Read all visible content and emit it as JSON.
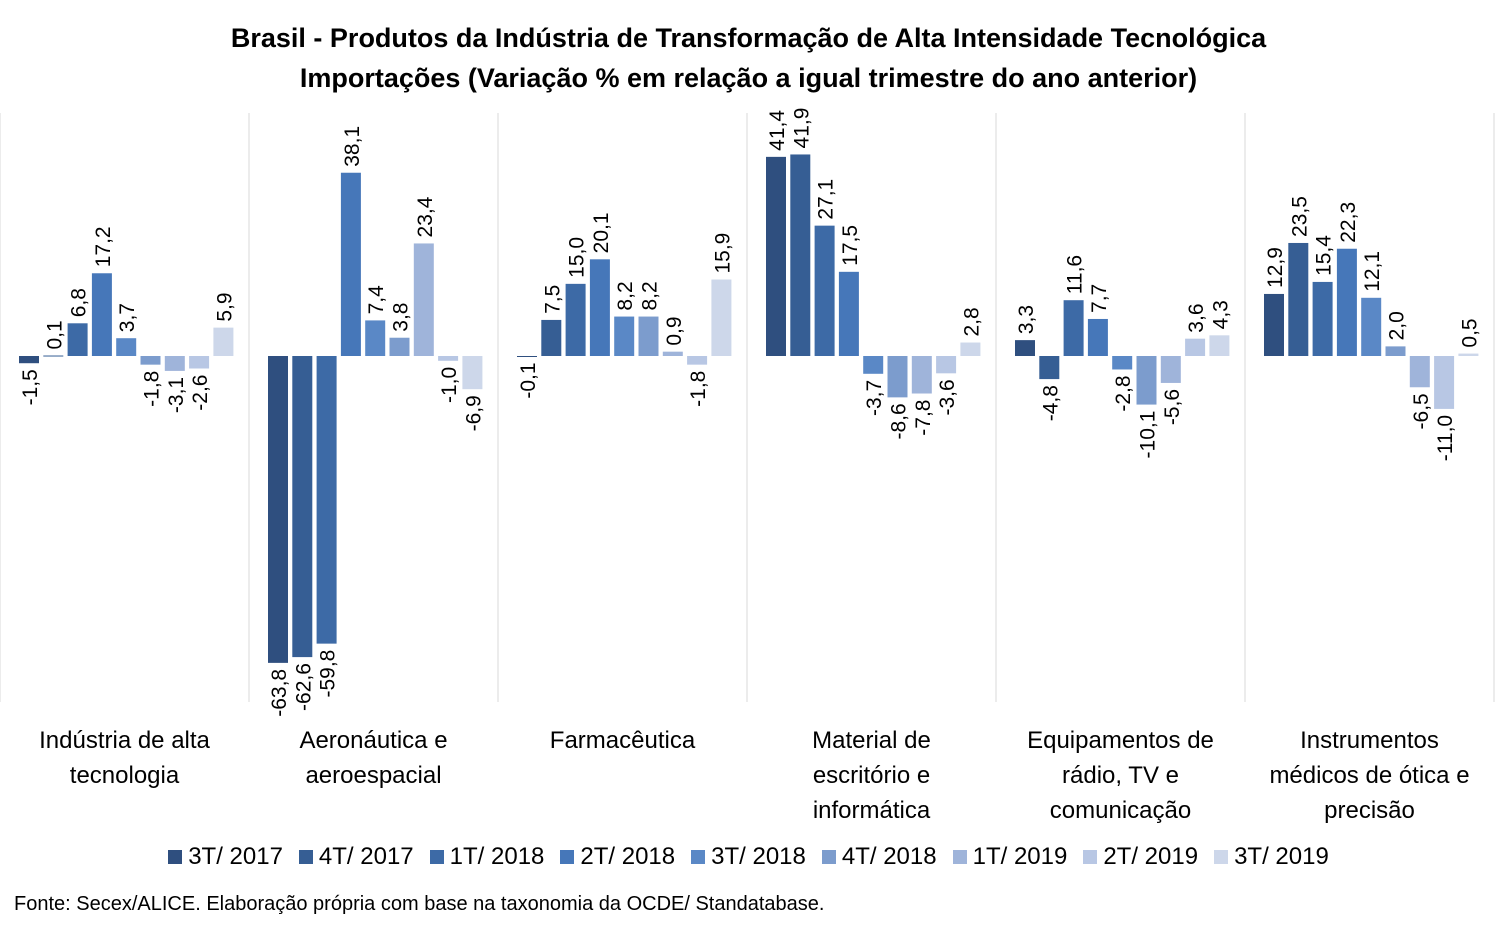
{
  "chart_data": {
    "type": "bar",
    "title": "Brasil - Produtos da Indústria de Transformação de Alta Intensidade Tecnológica",
    "subtitle": "Importações (Variação % em relação a igual trimestre do ano anterior)",
    "categories": [
      "Indústria de alta tecnologia",
      "Aeronáutica e aeroespacial",
      "Farmacêutica",
      "Material de escritório e informática",
      "Equipamentos de rádio, TV e comunicação",
      "Instrumentos médicos de ótica e precisão"
    ],
    "series": [
      {
        "name": "3T/ 2017",
        "color": "#2f4f7f",
        "values": [
          -1.5,
          -63.8,
          -0.1,
          41.4,
          3.3,
          12.9
        ],
        "labels": [
          "-1,5",
          "-63,8",
          "-0,1",
          "41,4",
          "3,3",
          "12,9"
        ]
      },
      {
        "name": "4T/ 2017",
        "color": "#365e94",
        "values": [
          0.1,
          -62.6,
          7.5,
          41.9,
          -4.8,
          23.5
        ],
        "labels": [
          "0,1",
          "-62,6",
          "7,5",
          "41,9",
          "-4,8",
          "23,5"
        ]
      },
      {
        "name": "1T/ 2018",
        "color": "#3d6aa6",
        "values": [
          6.8,
          -59.8,
          15.0,
          27.1,
          11.6,
          15.4
        ],
        "labels": [
          "6,8",
          "-59,8",
          "15,0",
          "27,1",
          "11,6",
          "15,4"
        ]
      },
      {
        "name": "2T/ 2018",
        "color": "#4677b9",
        "values": [
          17.2,
          38.1,
          20.1,
          17.5,
          7.7,
          22.3
        ],
        "labels": [
          "17,2",
          "38,1",
          "20,1",
          "17,5",
          "7,7",
          "22,3"
        ]
      },
      {
        "name": "3T/ 2018",
        "color": "#5a88c6",
        "values": [
          3.7,
          7.4,
          8.2,
          -3.7,
          -2.8,
          12.1
        ],
        "labels": [
          "3,7",
          "7,4",
          "8,2",
          "-3,7",
          "-2,8",
          "12,1"
        ]
      },
      {
        "name": "4T/ 2018",
        "color": "#7c9ccd",
        "values": [
          -1.8,
          3.8,
          8.2,
          -8.6,
          -10.1,
          2.0
        ],
        "labels": [
          "-1,8",
          "3,8",
          "8,2",
          "-8,6",
          "-10,1",
          "2,0"
        ]
      },
      {
        "name": "1T/ 2019",
        "color": "#9fb4da",
        "values": [
          -3.1,
          23.4,
          0.9,
          -7.8,
          -5.6,
          -6.5
        ],
        "labels": [
          "-3,1",
          "23,4",
          "0,9",
          "-7,8",
          "-5,6",
          "-6,5"
        ]
      },
      {
        "name": "2T/ 2019",
        "color": "#b8c7e4",
        "values": [
          -2.6,
          -1.0,
          -1.8,
          -3.6,
          3.6,
          -11.0
        ],
        "labels": [
          "-2,6",
          "-1,0",
          "-1,8",
          "-3,6",
          "3,6",
          "-11,0"
        ]
      },
      {
        "name": "3T/ 2019",
        "color": "#cdd7ea",
        "values": [
          5.9,
          -6.9,
          15.9,
          2.8,
          4.3,
          0.5
        ],
        "labels": [
          "5,9",
          "-6,9",
          "15,9",
          "2,8",
          "4,3",
          "0,5"
        ]
      }
    ],
    "ylim": [
      -70,
      50
    ],
    "xlabel": "",
    "ylabel": "",
    "grid": false,
    "legend_position": "bottom",
    "source": "Fonte: Secex/ALICE. Elaboração própria com base na taxonomia da OCDE/ Standatabase."
  }
}
